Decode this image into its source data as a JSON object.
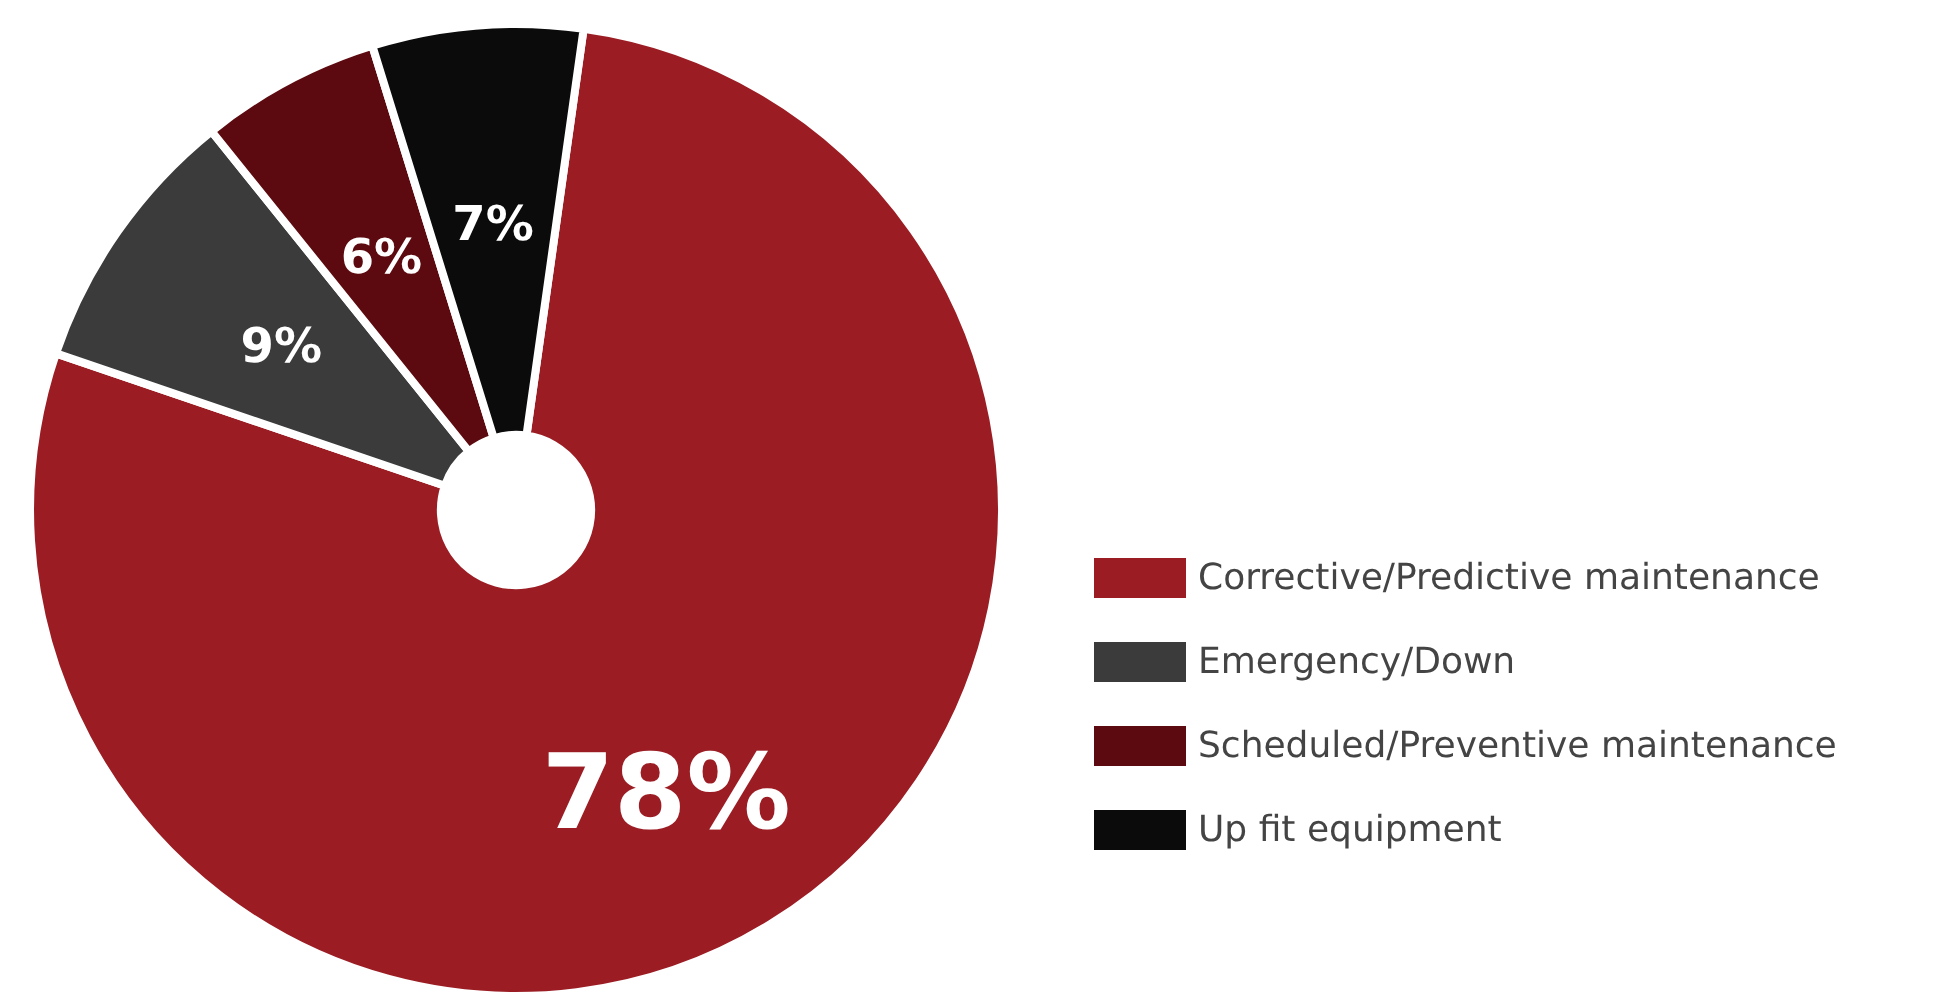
{
  "chart_data": {
    "type": "donut",
    "categories": [
      "Corrective/Predictive maintenance",
      "Emergency/Down",
      "Scheduled/Preventive maintenance",
      "Up fit equipment"
    ],
    "values": [
      78,
      9,
      6,
      7
    ],
    "value_labels": [
      "78%",
      "9%",
      "6%",
      "7%"
    ],
    "colors": [
      "#9b1c23",
      "#3b3b3b",
      "#5c0a0f",
      "#0b0b0b"
    ],
    "legend": "right"
  }
}
